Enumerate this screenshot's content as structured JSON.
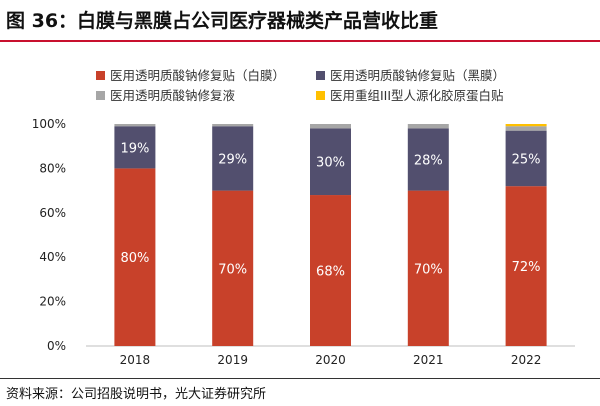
{
  "title": "图 36：白膜与黑膜占公司医疗器械类产品营收比重",
  "source": "资料来源：公司招股说明书，光大证券研究所",
  "chart_data": {
    "type": "bar",
    "stacked": true,
    "categories": [
      "2018",
      "2019",
      "2020",
      "2021",
      "2022"
    ],
    "ylim": [
      0,
      100
    ],
    "yticks": [
      "0%",
      "20%",
      "40%",
      "60%",
      "80%",
      "100%"
    ],
    "legend_position": "top",
    "series": [
      {
        "name": "医用透明质酸钠修复贴（白膜）",
        "color": "#c8412a",
        "values": [
          80,
          70,
          68,
          70,
          72
        ],
        "labels": [
          "80%",
          "70%",
          "68%",
          "70%",
          "72%"
        ]
      },
      {
        "name": "医用透明质酸钠修复贴（黑膜）",
        "color": "#524f6e",
        "values": [
          19,
          29,
          30,
          28,
          25
        ],
        "labels": [
          "19%",
          "29%",
          "30%",
          "28%",
          "25%"
        ]
      },
      {
        "name": "医用透明质酸钠修复液",
        "color": "#a6a6a6",
        "values": [
          1,
          1,
          2,
          2,
          2
        ]
      },
      {
        "name": "医用重组III型人源化胶原蛋白贴",
        "color": "#ffc000",
        "values": [
          0,
          0,
          0,
          0,
          1
        ]
      }
    ]
  }
}
